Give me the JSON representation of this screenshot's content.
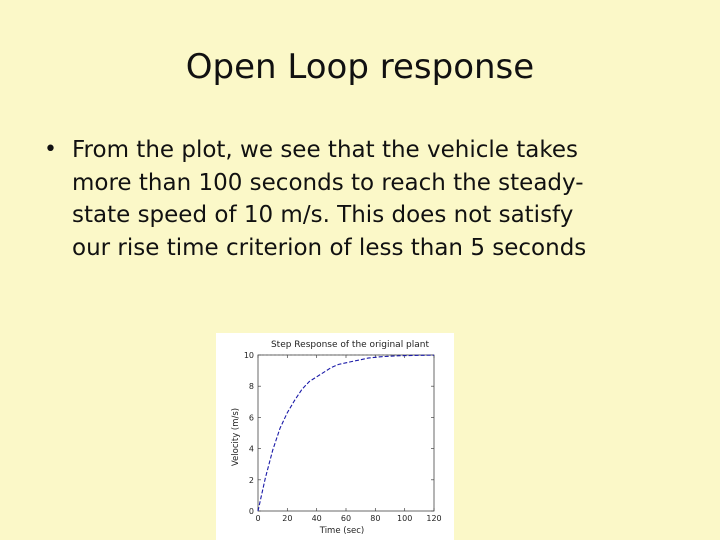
{
  "slide": {
    "title": "Open Loop response",
    "bullet": {
      "lines": [
        "From the plot, we see that the vehicle takes",
        "more than 100 seconds to reach the steady-",
        "state speed of 10 m/s. This does not satisfy",
        "our rise time criterion of less than 5 seconds"
      ]
    }
  },
  "chart_data": {
    "type": "line",
    "title": "Step Response of the original plant",
    "xlabel": "Time (sec)",
    "ylabel": "Velocity (m/s)",
    "xlim": [
      0,
      120
    ],
    "ylim": [
      0,
      10
    ],
    "xticks": [
      0,
      20,
      40,
      60,
      80,
      100,
      120
    ],
    "yticks": [
      0,
      2,
      4,
      6,
      8,
      10
    ],
    "grid": false,
    "series": [
      {
        "x": [
          0,
          5,
          10,
          15,
          20,
          25,
          30,
          35,
          40,
          45,
          50,
          55,
          60,
          65,
          70,
          75,
          80,
          85,
          90,
          95,
          100,
          110,
          120
        ],
        "values": [
          0,
          2.1,
          3.9,
          5.3,
          6.3,
          7.1,
          7.8,
          8.3,
          8.6,
          8.9,
          9.2,
          9.4,
          9.5,
          9.6,
          9.7,
          9.8,
          9.85,
          9.9,
          9.92,
          9.95,
          9.96,
          9.98,
          9.99
        ],
        "color": "#1a1aa8",
        "style": "dashed"
      }
    ],
    "reference_line": {
      "y": 10,
      "color": "#555555"
    }
  }
}
